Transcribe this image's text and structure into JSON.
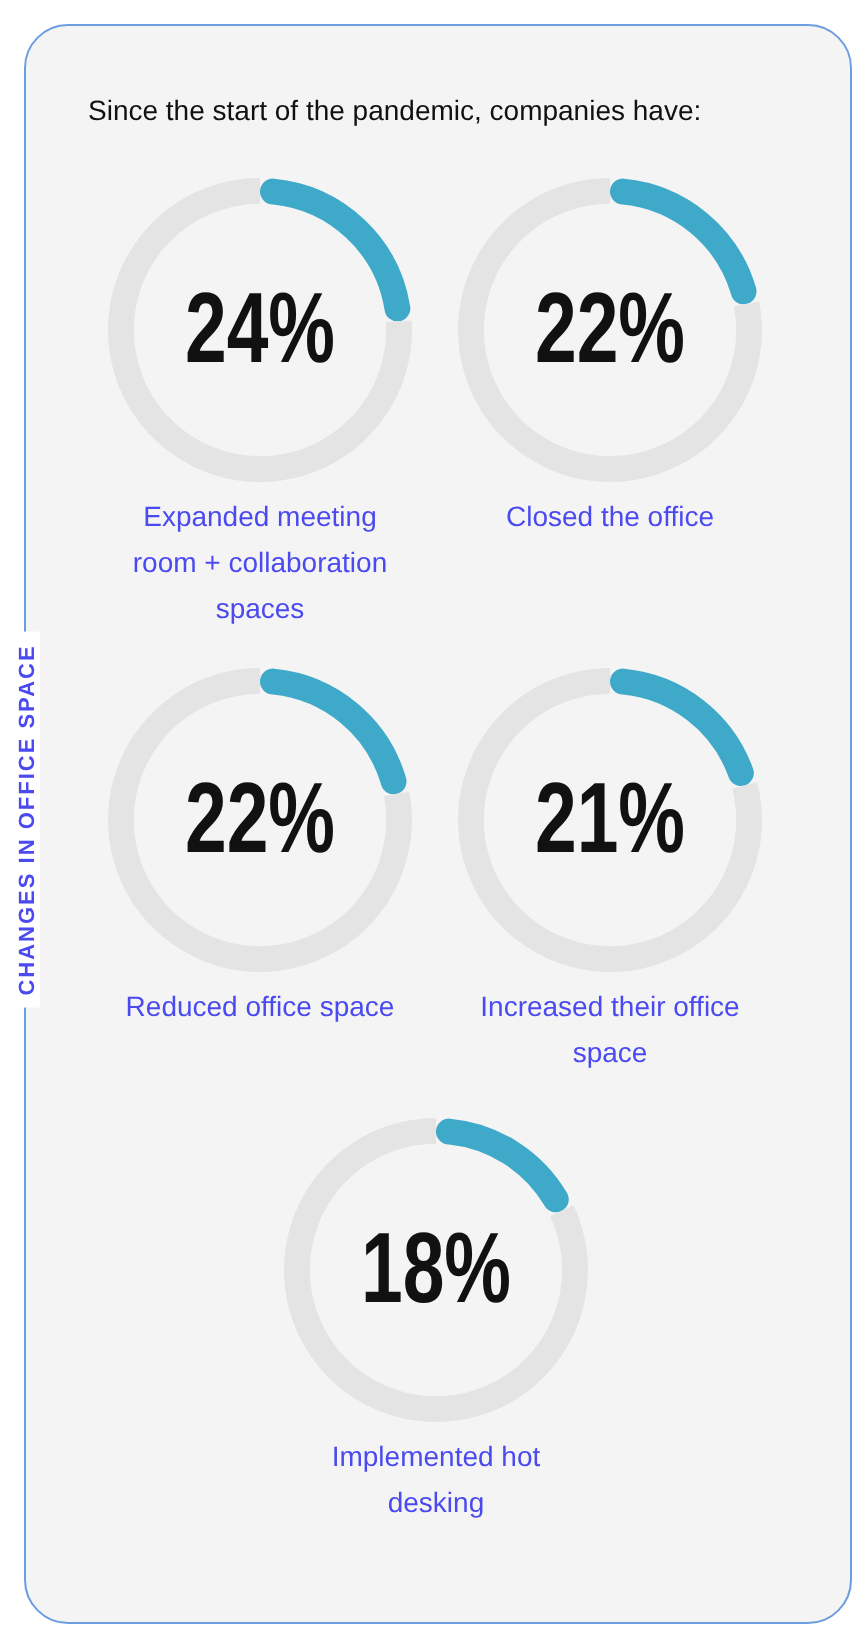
{
  "chart_data": [
    {
      "type": "donut",
      "title": "Expanded meeting room + collaboration spaces",
      "annotations": [
        "Since the start of the pandemic, companies have:",
        "CHANGES IN OFFICE SPACE"
      ],
      "categories": [
        null,
        null
      ],
      "values": [
        24,
        76
      ],
      "colors": [
        "#3fa9c9",
        "#e4e4e4"
      ],
      "value_labels": [
        "24%",
        null
      ]
    },
    {
      "type": "donut",
      "title": "Closed the office",
      "categories": [
        null,
        null
      ],
      "values": [
        22,
        78
      ],
      "colors": [
        "#3fa9c9",
        "#e4e4e4"
      ],
      "value_labels": [
        "22%",
        null
      ]
    },
    {
      "type": "donut",
      "title": "Reduced office space",
      "categories": [
        null,
        null
      ],
      "values": [
        22,
        78
      ],
      "colors": [
        "#3fa9c9",
        "#e4e4e4"
      ],
      "value_labels": [
        "22%",
        null
      ]
    },
    {
      "type": "donut",
      "title": "Increased their office space",
      "categories": [
        null,
        null
      ],
      "values": [
        21,
        79
      ],
      "colors": [
        "#3fa9c9",
        "#e4e4e4"
      ],
      "value_labels": [
        "21%",
        null
      ]
    },
    {
      "type": "donut",
      "title": "Implemented hot desking",
      "categories": [
        null,
        null
      ],
      "values": [
        18,
        82
      ],
      "colors": [
        "#3fa9c9",
        "#e4e4e4"
      ],
      "value_labels": [
        "18%",
        null
      ]
    }
  ]
}
